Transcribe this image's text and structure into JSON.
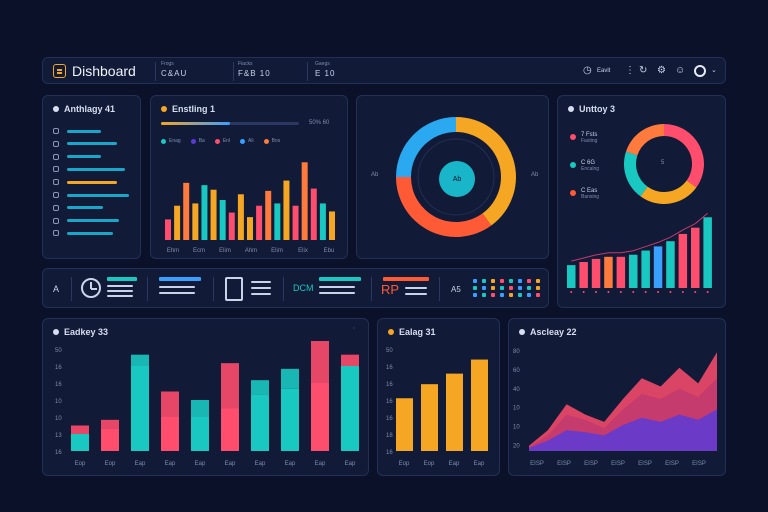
{
  "header": {
    "title": "Dishboard",
    "stats": [
      {
        "label": "Frogs",
        "value": "C&AU"
      },
      {
        "label": "Fiacks",
        "value": "F&B 10"
      },
      {
        "label": "Gaegs",
        "value": "E 10"
      }
    ],
    "user_label": "Eavit"
  },
  "panel1": {
    "title": "Anthlagy 41",
    "row_colors": [
      "#19a6c9",
      "#19a6c9",
      "#19a6c9",
      "#19a6c9",
      "#f5a623",
      "#19a6c9",
      "#19a6c9",
      "#19a6c9",
      "#19a6c9"
    ]
  },
  "panel2": {
    "title": "Enstling 1",
    "progress_label": "50% 60",
    "progress": 0.5,
    "legend": [
      {
        "label": "Enag",
        "color": "#19c9c1"
      },
      {
        "label": "Ba",
        "color": "#5b3bd6"
      },
      {
        "label": "Enl",
        "color": "#ff4d6d"
      },
      {
        "label": "Ali",
        "color": "#3aa0ff"
      },
      {
        "label": "Bos",
        "color": "#ff7a3d"
      }
    ],
    "x_labels": [
      "Ehm",
      "Ecm",
      "Elim",
      "Ahm",
      "Elim",
      "Elix",
      "Ebu"
    ],
    "chart_data": {
      "type": "bar",
      "values": [
        18,
        30,
        50,
        32,
        48,
        44,
        35,
        24,
        40,
        20,
        30,
        43,
        32,
        52,
        30,
        68,
        45,
        32,
        25
      ],
      "colors": [
        "#ff4d6d",
        "#f5a623",
        "#ff7a3d",
        "#f5a623",
        "#19c9c1",
        "#f5a623",
        "#19c9c1",
        "#ff4d6d",
        "#f5a623",
        "#f5a623",
        "#ff4d6d",
        "#ff7a3d",
        "#19c9c1",
        "#f5a623",
        "#ff4d6d",
        "#ff7a3d",
        "#ff4d6d",
        "#19c9c1",
        "#f5a623"
      ]
    }
  },
  "panel3": {
    "center_label": "Ab",
    "left_label": "Ab",
    "right_label": "Ab",
    "chart_data": {
      "type": "pie",
      "values": [
        40,
        35,
        25
      ],
      "colors": [
        "#f5a623",
        "#ff5a36",
        "#2aa8f0"
      ]
    }
  },
  "panel4": {
    "title": "Unttoy 3",
    "legend": [
      {
        "label": "7 Fsts",
        "sub": "Fasting",
        "color": "#ff4d6d"
      },
      {
        "label": "C 6G",
        "sub": "Encalng",
        "color": "#19c9c1"
      },
      {
        "label": "C Eas",
        "sub": "Bansing",
        "color": "#ff5a36"
      }
    ],
    "center_label": "5",
    "donut": {
      "values": [
        35,
        25,
        20,
        20
      ],
      "colors": [
        "#ff4d6d",
        "#f5a623",
        "#19c9c1",
        "#ff7a3d"
      ]
    },
    "chart_data": {
      "type": "bar",
      "values": [
        22,
        25,
        28,
        30,
        30,
        32,
        36,
        40,
        45,
        52,
        58,
        68
      ],
      "colors": [
        "#19c9c1",
        "#ff4d6d",
        "#ff4d6d",
        "#ff7a3d",
        "#ff4d6d",
        "#19c9c1",
        "#19c9c1",
        "#3aa0ff",
        "#19c9c1",
        "#ff4d6d",
        "#ff4d6d",
        "#19c9c1"
      ]
    }
  },
  "strip": {
    "a_label": "A",
    "b_label": "DCM",
    "c_label": "RP",
    "d_label": "A5",
    "dots": [
      "#3aa0ff",
      "#19c9c1",
      "#f5a623",
      "#ff4d6d",
      "#19c9c1",
      "#3aa0ff",
      "#ff4d6d",
      "#f5a623",
      "#19c9c1",
      "#3aa0ff",
      "#f5a623",
      "#19c9c1",
      "#ff4d6d",
      "#3aa0ff",
      "#19c9c1",
      "#f5a623",
      "#3aa0ff",
      "#19c9c1",
      "#ff4d6d",
      "#3aa0ff",
      "#f5a623",
      "#19c9c1",
      "#3aa0ff",
      "#ff4d6d"
    ]
  },
  "panel5": {
    "title": "Eadkey 33",
    "y_labels": [
      "50",
      "16",
      "16",
      "10",
      "10",
      "13",
      "16"
    ],
    "x_labels": [
      "Eop",
      "Eop",
      "Eap",
      "Eap",
      "Eap",
      "Eap",
      "Eap",
      "Eap",
      "Eap",
      "Eap"
    ],
    "chart_data": {
      "type": "bar",
      "series": [
        {
          "values": [
            6,
            8,
            30,
            12,
            12,
            15,
            20,
            22,
            24,
            30
          ]
        },
        {
          "values": [
            3,
            3,
            4,
            9,
            6,
            16,
            5,
            7,
            25,
            4
          ]
        }
      ],
      "colors": [
        [
          "#19c9c1",
          "#ff4d6d"
        ],
        [
          "#ff4d6d",
          "#ff4d6d"
        ],
        [
          "#19c9c1",
          "#19c9c1"
        ],
        [
          "#ff4d6d",
          "#ff4d6d"
        ],
        [
          "#19c9c1",
          "#19c9c1"
        ],
        [
          "#ff4d6d",
          "#ff4d6d"
        ],
        [
          "#19c9c1",
          "#19c9c1"
        ],
        [
          "#19c9c1",
          "#19c9c1"
        ],
        [
          "#ff4d6d",
          "#ff4d6d"
        ],
        [
          "#19c9c1",
          "#ff4d6d"
        ]
      ]
    }
  },
  "panel6": {
    "title": "Ealag 31",
    "y_labels": [
      "50",
      "16",
      "16",
      "16",
      "16",
      "18",
      "16"
    ],
    "x_labels": [
      "Eop",
      "Eop",
      "Eap",
      "Eap"
    ],
    "chart_data": {
      "type": "bar",
      "values": [
        30,
        38,
        44,
        52
      ],
      "color": "#f5a623"
    }
  },
  "panel7": {
    "title": "Ascleay 22",
    "y_labels": [
      "80",
      "60",
      "40",
      "10",
      "10",
      "20"
    ],
    "x_labels": [
      "EISP",
      "EISP",
      "EISP",
      "EISP",
      "EISP",
      "EISP",
      "EISP"
    ],
    "chart_data": {
      "type": "area",
      "series": [
        {
          "color": "#ff4d6d",
          "values": [
            5,
            20,
            45,
            35,
            28,
            50,
            70,
            62,
            80,
            65,
            95
          ]
        },
        {
          "color": "#c23a6e",
          "values": [
            4,
            15,
            35,
            30,
            22,
            40,
            55,
            50,
            60,
            52,
            70
          ]
        },
        {
          "color": "#5b3bd6",
          "values": [
            3,
            10,
            20,
            18,
            15,
            25,
            32,
            28,
            35,
            30,
            40
          ]
        }
      ],
      "ylim": [
        0,
        100
      ]
    }
  }
}
